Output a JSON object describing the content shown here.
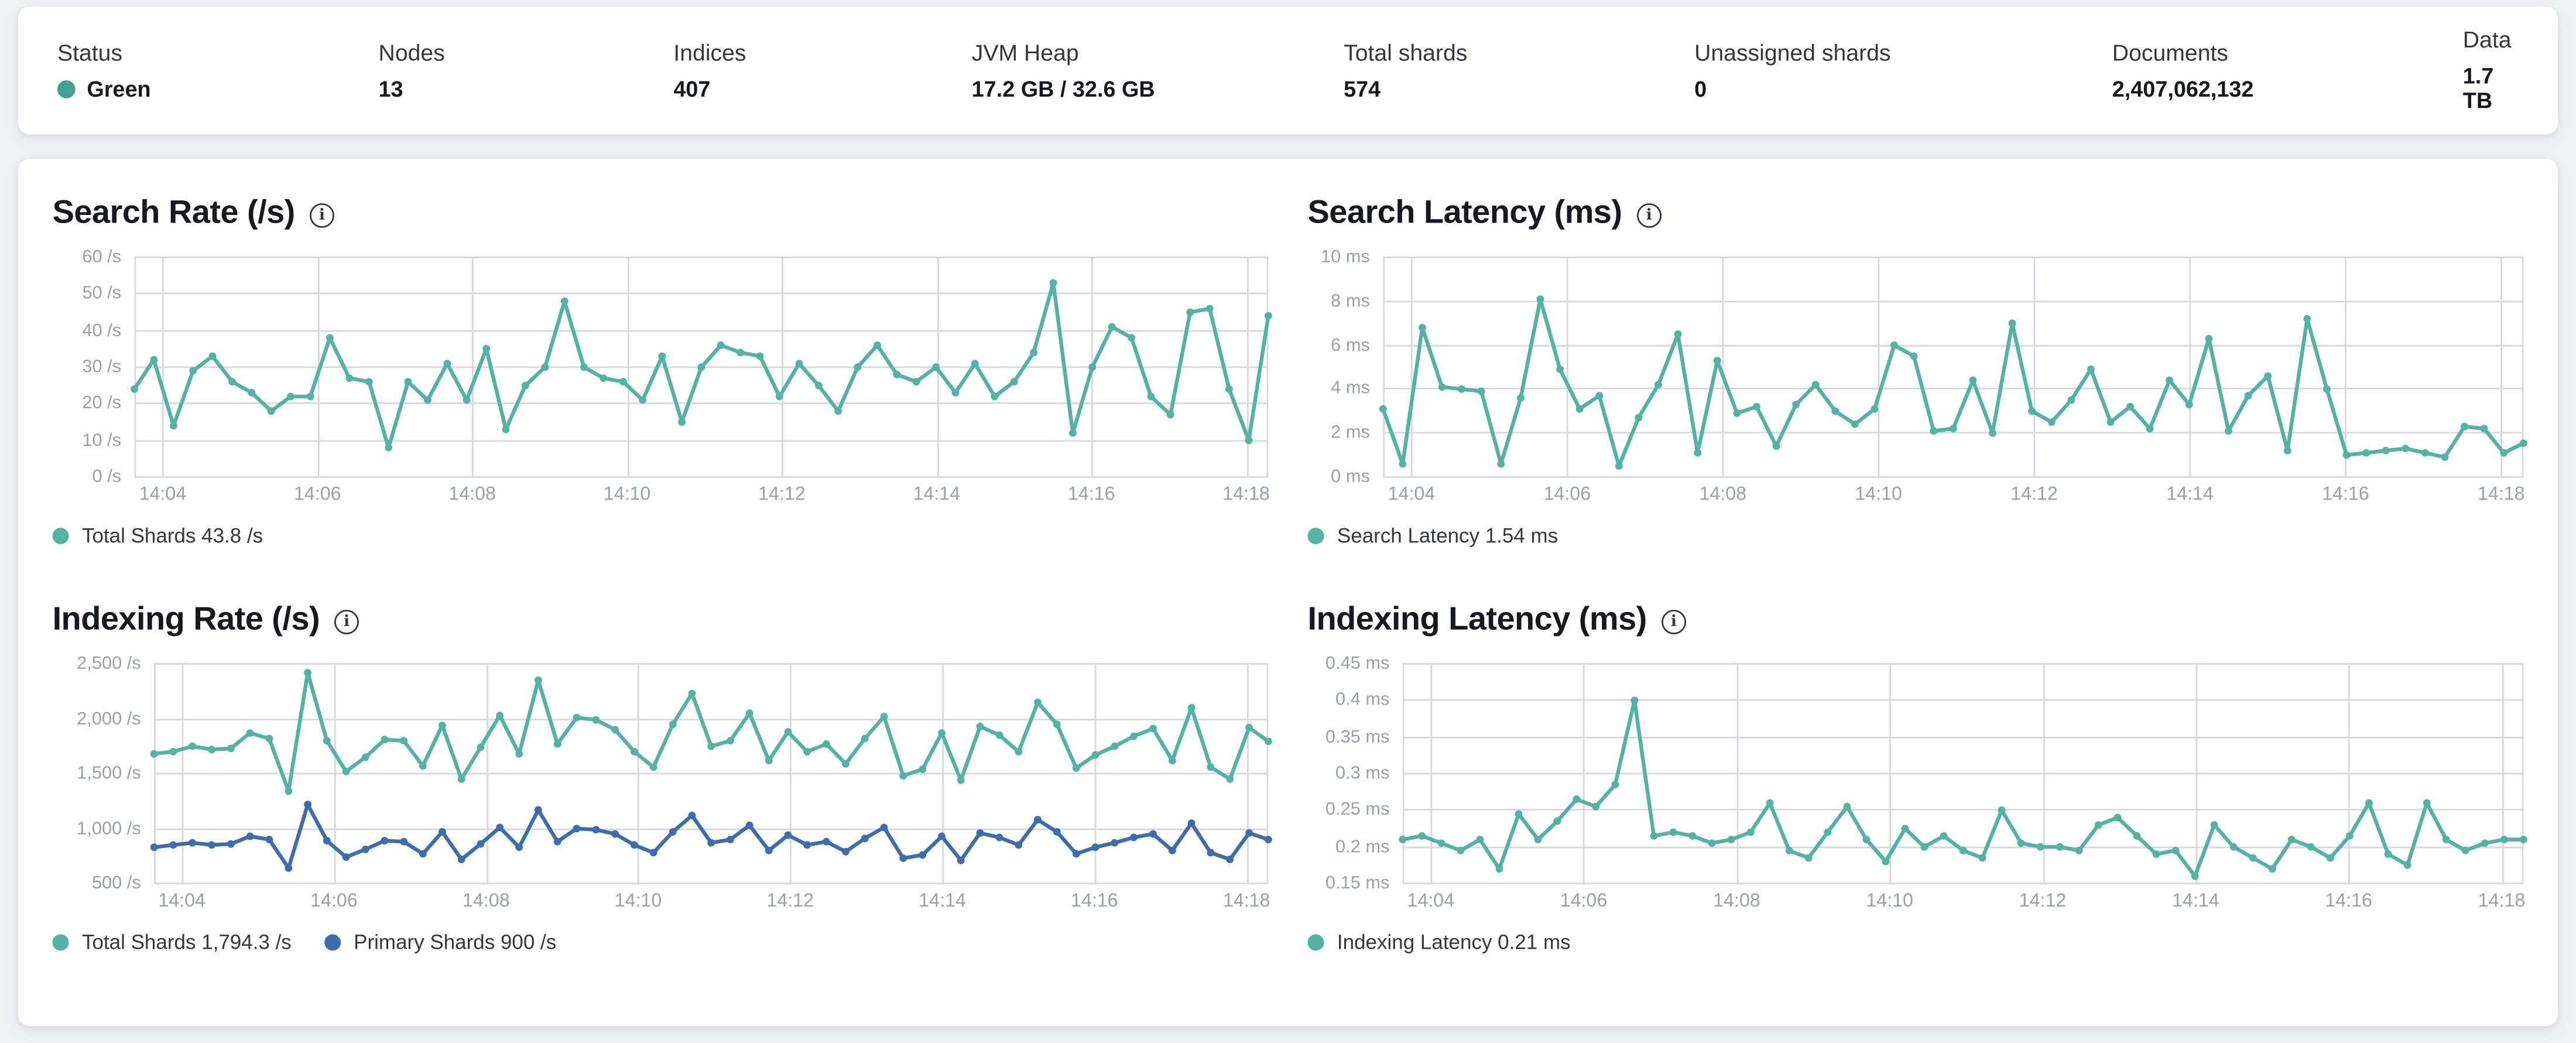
{
  "overview": {
    "metrics": [
      {
        "label": "Status",
        "value": "Green",
        "status_color": "#44a294"
      },
      {
        "label": "Nodes",
        "value": "13"
      },
      {
        "label": "Indices",
        "value": "407"
      },
      {
        "label": "JVM Heap",
        "value": "17.2 GB / 32.6 GB"
      },
      {
        "label": "Total shards",
        "value": "574"
      },
      {
        "label": "Unassigned shards",
        "value": "0"
      },
      {
        "label": "Documents",
        "value": "2,407,062,132"
      },
      {
        "label": "Data",
        "value": "1.7 TB"
      }
    ]
  },
  "colors": {
    "teal": "#52b3a3",
    "blue": "#3d6dae",
    "grid": "#d5d8de",
    "axis_text": "#98a0ab",
    "page_bg": "#eef0f4"
  },
  "info_icon_glyph": "i",
  "chart_data": [
    {
      "id": "search-rate",
      "type": "line",
      "title": "Search Rate (/s)",
      "ylim": [
        0,
        60
      ],
      "y_tick_labels": [
        "0 /s",
        "10 /s",
        "20 /s",
        "30 /s",
        "40 /s",
        "50 /s",
        "60 /s"
      ],
      "x_ticks": [
        "14:04",
        "14:06",
        "14:08",
        "14:10",
        "14:12",
        "14:14",
        "14:16",
        "14:18"
      ],
      "grid": true,
      "legend_position": "bottom",
      "series": [
        {
          "name": "Total Shards",
          "legend": "Total Shards 43.8 /s",
          "color": "#52b3a3",
          "values": [
            24,
            32,
            14,
            29,
            33,
            26,
            23,
            18,
            22,
            22,
            38,
            27,
            26,
            8,
            26,
            21,
            31,
            21,
            35,
            13,
            25,
            30,
            48,
            30,
            27,
            26,
            21,
            33,
            15,
            30,
            36,
            34,
            33,
            22,
            31,
            25,
            18,
            30,
            36,
            28,
            26,
            30,
            23,
            31,
            22,
            26,
            34,
            53,
            12,
            30,
            41,
            38,
            22,
            17,
            45,
            46,
            24,
            10,
            44
          ]
        }
      ]
    },
    {
      "id": "search-latency",
      "type": "line",
      "title": "Search Latency (ms)",
      "ylim": [
        0,
        10
      ],
      "y_tick_labels": [
        "0 ms",
        "2 ms",
        "4 ms",
        "6 ms",
        "8 ms",
        "10 ms"
      ],
      "x_ticks": [
        "14:04",
        "14:06",
        "14:08",
        "14:10",
        "14:12",
        "14:14",
        "14:16",
        "14:18"
      ],
      "grid": true,
      "legend_position": "bottom",
      "series": [
        {
          "name": "Search Latency",
          "legend": "Search Latency 1.54 ms",
          "color": "#52b3a3",
          "values": [
            3.1,
            0.6,
            6.8,
            4.1,
            4.0,
            3.9,
            0.6,
            3.6,
            8.1,
            4.9,
            3.1,
            3.7,
            0.5,
            2.7,
            4.2,
            6.5,
            1.1,
            5.3,
            2.9,
            3.2,
            1.4,
            3.3,
            4.2,
            3.0,
            2.4,
            3.1,
            6.0,
            5.5,
            2.1,
            2.2,
            4.4,
            2.0,
            7.0,
            3.0,
            2.5,
            3.5,
            4.9,
            2.5,
            3.2,
            2.2,
            4.4,
            3.3,
            6.3,
            2.1,
            3.7,
            4.6,
            1.2,
            7.2,
            4.0,
            1.0,
            1.1,
            1.2,
            1.3,
            1.1,
            0.9,
            2.3,
            2.2,
            1.1,
            1.54
          ]
        }
      ]
    },
    {
      "id": "indexing-rate",
      "type": "line",
      "title": "Indexing Rate (/s)",
      "ylim": [
        500,
        2500
      ],
      "y_tick_labels": [
        "500 /s",
        "1,000 /s",
        "1,500 /s",
        "2,000 /s",
        "2,500 /s"
      ],
      "x_ticks": [
        "14:04",
        "14:06",
        "14:08",
        "14:10",
        "14:12",
        "14:14",
        "14:16",
        "14:18"
      ],
      "grid": true,
      "legend_position": "bottom",
      "series": [
        {
          "name": "Total Shards",
          "legend": "Total Shards 1,794.3 /s",
          "color": "#52b3a3",
          "values": [
            1680,
            1700,
            1750,
            1720,
            1730,
            1870,
            1820,
            1340,
            2420,
            1800,
            1520,
            1650,
            1810,
            1800,
            1570,
            1940,
            1450,
            1740,
            2030,
            1680,
            2350,
            1770,
            2010,
            1990,
            1900,
            1700,
            1560,
            1950,
            2230,
            1750,
            1800,
            2050,
            1620,
            1880,
            1700,
            1770,
            1590,
            1820,
            2020,
            1480,
            1540,
            1870,
            1440,
            1930,
            1850,
            1700,
            2150,
            1950,
            1550,
            1670,
            1750,
            1840,
            1910,
            1620,
            2100,
            1560,
            1450,
            1920,
            1794
          ]
        },
        {
          "name": "Primary Shards",
          "legend": "Primary Shards 900 /s",
          "color": "#3d6dae",
          "values": [
            830,
            850,
            870,
            850,
            860,
            930,
            900,
            640,
            1220,
            890,
            740,
            810,
            890,
            880,
            770,
            970,
            720,
            860,
            1010,
            830,
            1170,
            880,
            1000,
            990,
            950,
            850,
            780,
            970,
            1120,
            870,
            900,
            1030,
            800,
            940,
            850,
            880,
            790,
            910,
            1010,
            730,
            760,
            930,
            710,
            960,
            920,
            850,
            1080,
            970,
            770,
            830,
            870,
            920,
            950,
            800,
            1050,
            780,
            720,
            960,
            900
          ]
        }
      ]
    },
    {
      "id": "indexing-latency",
      "type": "line",
      "title": "Indexing Latency (ms)",
      "ylim": [
        0.15,
        0.45
      ],
      "y_tick_labels": [
        "0.15 ms",
        "0.2 ms",
        "0.25 ms",
        "0.3 ms",
        "0.35 ms",
        "0.4 ms",
        "0.45 ms"
      ],
      "x_ticks": [
        "14:04",
        "14:06",
        "14:08",
        "14:10",
        "14:12",
        "14:14",
        "14:16",
        "14:18"
      ],
      "grid": true,
      "legend_position": "bottom",
      "series": [
        {
          "name": "Indexing Latency",
          "legend": "Indexing Latency 0.21 ms",
          "color": "#52b3a3",
          "values": [
            0.21,
            0.215,
            0.205,
            0.195,
            0.21,
            0.17,
            0.245,
            0.21,
            0.235,
            0.265,
            0.255,
            0.285,
            0.4,
            0.215,
            0.22,
            0.215,
            0.205,
            0.21,
            0.22,
            0.26,
            0.195,
            0.185,
            0.22,
            0.255,
            0.21,
            0.18,
            0.225,
            0.2,
            0.215,
            0.195,
            0.185,
            0.25,
            0.205,
            0.2,
            0.2,
            0.195,
            0.23,
            0.24,
            0.215,
            0.19,
            0.195,
            0.16,
            0.23,
            0.2,
            0.185,
            0.17,
            0.21,
            0.2,
            0.185,
            0.215,
            0.26,
            0.19,
            0.175,
            0.26,
            0.21,
            0.195,
            0.205,
            0.21,
            0.21
          ]
        }
      ]
    }
  ]
}
